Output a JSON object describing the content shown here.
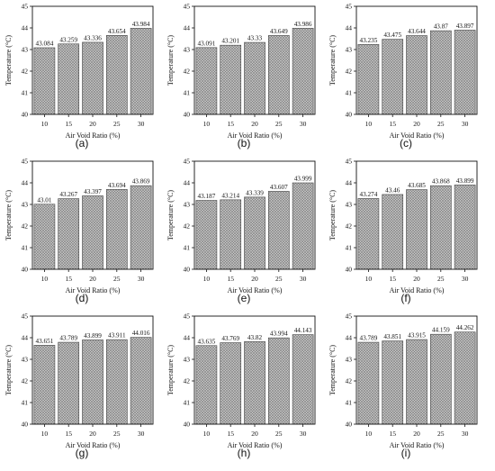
{
  "chart_data": [
    {
      "type": "bar",
      "panel": "(a)",
      "categories": [
        "10",
        "15",
        "20",
        "25",
        "30"
      ],
      "values": [
        43.084,
        43.259,
        43.336,
        43.654,
        43.984
      ],
      "value_labels": [
        "43.084",
        "43.259",
        "43.336",
        "43.654",
        "43.984"
      ],
      "xlabel": "Air Void Ratio (%)",
      "ylabel": "Temperature (°C)",
      "ylim": [
        40,
        45
      ],
      "yticks": [
        "40",
        "41",
        "42",
        "43",
        "44",
        "45"
      ]
    },
    {
      "type": "bar",
      "panel": "(b)",
      "categories": [
        "10",
        "15",
        "20",
        "25",
        "30"
      ],
      "values": [
        43.091,
        43.201,
        43.33,
        43.649,
        43.986
      ],
      "value_labels": [
        "43.091",
        "43.201",
        "43.33",
        "43.649",
        "43.986"
      ],
      "xlabel": "Air Void Ratio (%)",
      "ylabel": "Temperature (°C)",
      "ylim": [
        40,
        45
      ],
      "yticks": [
        "40",
        "41",
        "42",
        "43",
        "44",
        "45"
      ]
    },
    {
      "type": "bar",
      "panel": "(c)",
      "categories": [
        "10",
        "15",
        "20",
        "25",
        "30"
      ],
      "values": [
        43.235,
        43.475,
        43.644,
        43.87,
        43.897
      ],
      "value_labels": [
        "43.235",
        "43.475",
        "43.644",
        "43.87",
        "43.897"
      ],
      "xlabel": "Air Void Ratio (%)",
      "ylabel": "Temperature (°C)",
      "ylim": [
        40,
        45
      ],
      "yticks": [
        "40",
        "41",
        "42",
        "43",
        "44",
        "45"
      ]
    },
    {
      "type": "bar",
      "panel": "(d)",
      "categories": [
        "10",
        "15",
        "20",
        "25",
        "30"
      ],
      "values": [
        43.01,
        43.267,
        43.397,
        43.694,
        43.869
      ],
      "value_labels": [
        "43.01",
        "43.267",
        "43.397",
        "43.694",
        "43.869"
      ],
      "xlabel": "Air Void Ratio (%)",
      "ylabel": "Temperature (°C)",
      "ylim": [
        40,
        45
      ],
      "yticks": [
        "40",
        "41",
        "42",
        "43",
        "44",
        "45"
      ]
    },
    {
      "type": "bar",
      "panel": "(e)",
      "categories": [
        "10",
        "15",
        "20",
        "25",
        "30"
      ],
      "values": [
        43.187,
        43.214,
        43.339,
        43.607,
        43.999
      ],
      "value_labels": [
        "43.187",
        "43.214",
        "43.339",
        "43.607",
        "43.999"
      ],
      "xlabel": "Air Void Ratio (%)",
      "ylabel": "Temperature (°C)",
      "ylim": [
        40,
        45
      ],
      "yticks": [
        "40",
        "41",
        "42",
        "43",
        "44",
        "45"
      ]
    },
    {
      "type": "bar",
      "panel": "(f)",
      "categories": [
        "10",
        "15",
        "20",
        "25",
        "30"
      ],
      "values": [
        43.274,
        43.46,
        43.685,
        43.868,
        43.899
      ],
      "value_labels": [
        "43.274",
        "43.46",
        "43.685",
        "43.868",
        "43.899"
      ],
      "xlabel": "Air Void Ratio (%)",
      "ylabel": "Temperature (°C)",
      "ylim": [
        40,
        45
      ],
      "yticks": [
        "40",
        "41",
        "42",
        "43",
        "44",
        "45"
      ]
    },
    {
      "type": "bar",
      "panel": "(g)",
      "categories": [
        "10",
        "15",
        "20",
        "25",
        "30"
      ],
      "values": [
        43.651,
        43.789,
        43.899,
        43.911,
        44.016
      ],
      "value_labels": [
        "43.651",
        "43.789",
        "43.899",
        "43.911",
        "44.016"
      ],
      "xlabel": "Air Void Ratio (%)",
      "ylabel": "Temperature (°C)",
      "ylim": [
        40,
        45
      ],
      "yticks": [
        "40",
        "41",
        "42",
        "43",
        "44",
        "45"
      ]
    },
    {
      "type": "bar",
      "panel": "(h)",
      "categories": [
        "10",
        "15",
        "20",
        "25",
        "30"
      ],
      "values": [
        43.635,
        43.769,
        43.82,
        43.994,
        44.143
      ],
      "value_labels": [
        "43.635",
        "43.769",
        "43.82",
        "43.994",
        "44.143"
      ],
      "xlabel": "Air Void Ratio (%)",
      "ylabel": "Temperature (°C)",
      "ylim": [
        40,
        45
      ],
      "yticks": [
        "40",
        "41",
        "42",
        "43",
        "44",
        "45"
      ]
    },
    {
      "type": "bar",
      "panel": "(i)",
      "categories": [
        "10",
        "15",
        "20",
        "25",
        "30"
      ],
      "values": [
        43.789,
        43.851,
        43.915,
        44.159,
        44.262
      ],
      "value_labels": [
        "43.789",
        "43.851",
        "43.915",
        "44.159",
        "44.262"
      ],
      "xlabel": "Air Void Ratio (%)",
      "ylabel": "Temperature (°C)",
      "ylim": [
        40,
        45
      ],
      "yticks": [
        "40",
        "41",
        "42",
        "43",
        "44",
        "45"
      ]
    }
  ],
  "style": {
    "bar_fill": "#c8c8c8",
    "bar_hatch": "#7a7a7a",
    "axis_color": "#111111"
  }
}
